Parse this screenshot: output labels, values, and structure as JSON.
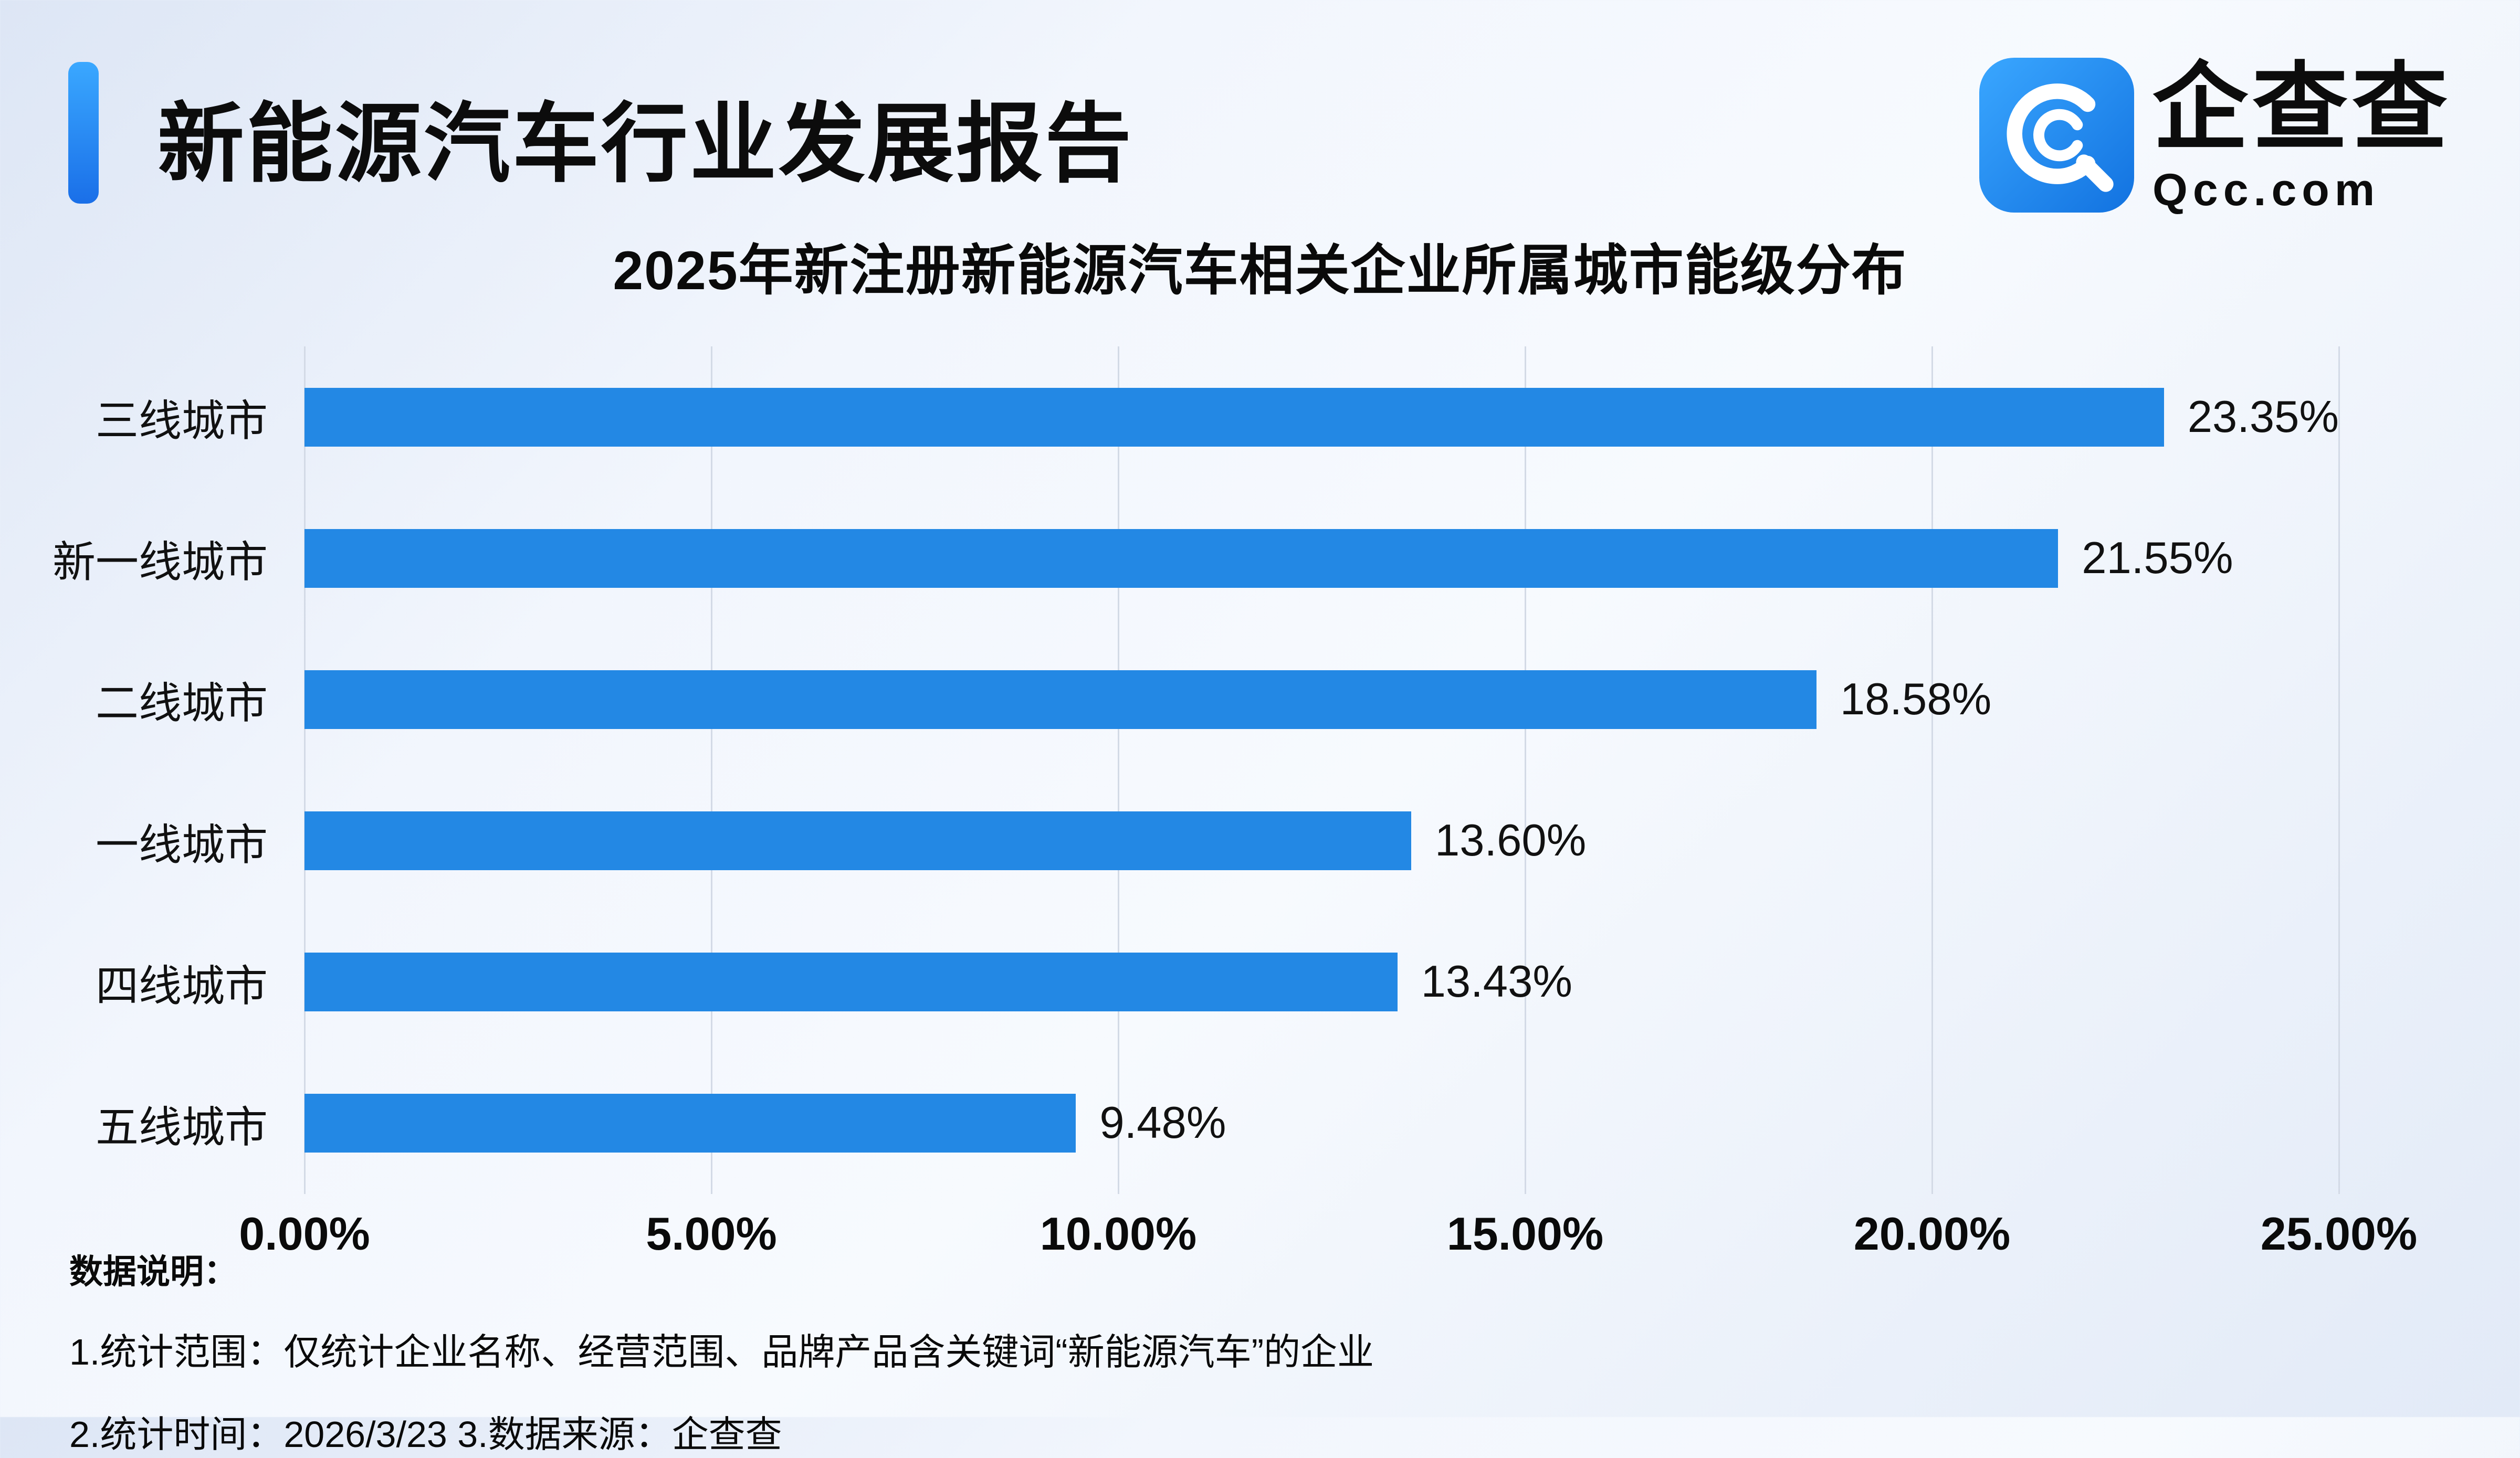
{
  "header": {
    "report_title": "新能源汽车行业发展报告",
    "logo": {
      "name": "企查查",
      "domain": "Qcc.com"
    }
  },
  "chart_data": {
    "type": "bar",
    "orientation": "horizontal",
    "title": "2025年新注册新能源汽车相关企业所属城市能级分布",
    "categories": [
      "三线城市",
      "新一线城市",
      "二线城市",
      "一线城市",
      "四线城市",
      "五线城市"
    ],
    "values": [
      23.35,
      21.55,
      18.58,
      13.6,
      13.43,
      9.48
    ],
    "value_labels": [
      "23.35%",
      "21.55%",
      "18.58%",
      "13.60%",
      "13.43%",
      "9.48%"
    ],
    "x_ticks": [
      "0.00%",
      "5.00%",
      "10.00%",
      "15.00%",
      "20.00%",
      "25.00%"
    ],
    "xlim": [
      0,
      25
    ],
    "bar_color": "#2388e4",
    "grid": true,
    "legend": "none"
  },
  "footer": {
    "notes_title": "数据说明：",
    "note1": "1.统计范围：仅统计企业名称、经营范围、品牌产品含关键词“新能源汽车”的企业",
    "note2": "2.统计时间：2026/3/23  3.数据来源：企查查"
  },
  "colors": {
    "accent_top": "#3aa8ff",
    "accent_bottom": "#1a6fe8",
    "bar": "#2388e4",
    "gridline": "#d3dae6",
    "text": "#0a0a0a"
  }
}
